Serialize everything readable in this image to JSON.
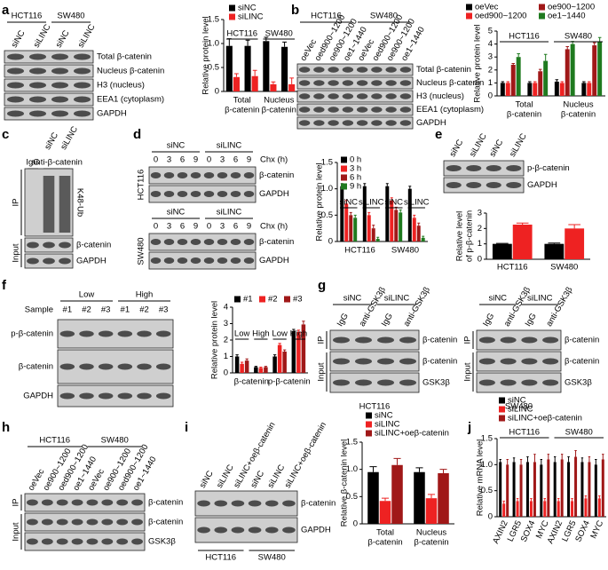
{
  "panel_labels": [
    "a",
    "b",
    "c",
    "d",
    "e",
    "f",
    "g",
    "h",
    "i",
    "j"
  ],
  "blots": [
    {
      "groups": [
        "HCT116",
        "SW480"
      ],
      "lanes": [
        "siNC",
        "siLINC",
        "siNC",
        "siLINC"
      ],
      "rows": [
        "Total β-catenin",
        "Nucleus β-catenin",
        "H3 (nucleus)",
        "EEA1 (cytoplasm)",
        "GAPDH"
      ]
    },
    {
      "groups": [
        "HCT116",
        "SW480"
      ],
      "lanes": [
        "oeVec",
        "oed900~1200",
        "oe900~1200",
        "oe1~1440",
        "oeVec",
        "oed900~1200",
        "oe900~1200",
        "oe1~1440"
      ],
      "rows": [
        "Total β-catenin",
        "Nucleus β-catenin",
        "H3 (nucleus)",
        "EEA1 (cytoplasm)",
        "GAPDH"
      ]
    },
    {
      "groups": [
        "IgG",
        "anti-β-catenin"
      ],
      "lanes": [
        null,
        "siNC",
        "siLINC"
      ],
      "side": [
        "IP",
        "Input"
      ],
      "rows": [
        "K48-Ub",
        "β-catenin",
        "GAPDH"
      ]
    },
    {
      "groups": [
        "siNC",
        "siLINC"
      ],
      "lanes": [
        0,
        3,
        6,
        9,
        0,
        3,
        6,
        9
      ],
      "chx": "Chx (h)",
      "cell": "HCT116",
      "rows": [
        "β-catenin",
        "GAPDH"
      ]
    },
    {
      "groups": [
        "siNC",
        "siLINC"
      ],
      "lanes": [
        0,
        3,
        6,
        9,
        0,
        3,
        6,
        9
      ],
      "chx": "Chx (h)",
      "cell": "SW480",
      "rows": [
        "β-catenin",
        "GAPDH"
      ]
    },
    {
      "lanes": [
        "siNC",
        "siLINC",
        "siNC",
        "siLINC"
      ],
      "rows": [
        "p-β-catenin",
        "GAPDH"
      ]
    },
    {
      "groups": [
        "Low",
        "High"
      ],
      "sample": "Sample",
      "lanes": [
        "#1",
        "#2",
        "#3",
        "#1",
        "#2",
        "#3"
      ],
      "rows": [
        "p-β-catenin",
        "β-catenin",
        "GAPDH"
      ]
    },
    {
      "groups": [
        "siNC",
        "siLINC"
      ],
      "lanes": [
        "IgG",
        "anti-GSK3β",
        "IgG",
        "anti-GSK3β"
      ],
      "side": [
        "IP",
        "Input"
      ],
      "rows": [
        "β-catenin",
        "β-catenin",
        "GSK3β"
      ],
      "captions": [
        "HCT116"
      ]
    },
    {
      "groups": [
        "siNC",
        "siLINC"
      ],
      "lanes": [
        "IgG",
        "anti-GSK3β",
        "IgG",
        "anti-GSK3β"
      ],
      "side": [
        "IP",
        "Input"
      ],
      "rows": [
        "β-catenin",
        "β-catenin",
        "GSK3β"
      ],
      "captions": [
        "SW480"
      ]
    },
    {
      "groups": [
        "HCT116",
        "SW480"
      ],
      "lanes": [
        "oeVec",
        "oe900~1200",
        "oed900~1200",
        "oe1~1440",
        "oeVec",
        "oe900~1200",
        "oed900~1200",
        "oe1~1440"
      ],
      "side": [
        "IP",
        "Input"
      ],
      "rows": [
        "β-catenin",
        "β-catenin",
        "GSK3β"
      ]
    },
    {
      "lanes": [
        "siNC",
        "siLINC",
        "siLINC+oeβ-catenin",
        "siNC",
        "siLINC",
        "siLINC+oeβ-catenin"
      ],
      "rows": [
        "β-catenin",
        "GAPDH"
      ],
      "captions": [
        "HCT116",
        "SW480"
      ]
    }
  ],
  "chart_data": [
    {
      "type": "bar",
      "ylabel": [
        "Relative protein level"
      ],
      "ylim": [
        0,
        1.5
      ],
      "yticks": [
        0,
        0.5,
        {
          "value": 1,
          "label": "1.0"
        },
        1.5
      ],
      "categories": [
        null,
        null,
        null,
        null
      ],
      "top_labels": [
        "HCT116",
        "SW480"
      ],
      "bottom_labels": [
        [
          "Total",
          "β-catenin"
        ],
        [
          "Nucleus",
          "β-catenin"
        ]
      ],
      "series": [
        {
          "name": "siNC",
          "color": "#000000",
          "values": [
            0.95,
            0.95,
            1.05,
            0.93
          ],
          "errors": [
            0.15,
            0.12,
            0.08,
            0.1
          ]
        },
        {
          "name": "siLINC",
          "color": "#ee2222",
          "values": [
            0.3,
            0.32,
            0.15,
            0.15
          ],
          "errors": [
            0.07,
            0.12,
            0.05,
            0.13
          ]
        }
      ]
    },
    {
      "type": "bar",
      "ylabel": [
        "Relative protein level"
      ],
      "ylim": [
        0,
        5
      ],
      "yticks": [
        0,
        1,
        2,
        3,
        4,
        5
      ],
      "categories": [
        null,
        null,
        null,
        null
      ],
      "top_labels": [
        "HCT116",
        "SW480"
      ],
      "bottom_labels": [
        [
          "Total",
          "β-catenin"
        ],
        [
          "Nucleus",
          "β-catenin"
        ]
      ],
      "series": [
        {
          "name": "oeVec",
          "color": "#000000",
          "values": [
            1.0,
            1.0,
            1.1,
            1.0
          ],
          "errors": [
            0.1,
            0.1,
            0.15,
            0.1
          ]
        },
        {
          "name": "oed900~1200",
          "color": "#ee2222",
          "values": [
            1.0,
            1.0,
            1.0,
            1.0
          ],
          "errors": [
            0.1,
            0.1,
            0.1,
            0.1
          ]
        },
        {
          "name": "oe900~1200",
          "color": "#a01818",
          "values": [
            2.4,
            1.9,
            3.6,
            3.9
          ],
          "errors": [
            0.1,
            0.15,
            0.2,
            0.2
          ]
        },
        {
          "name": "oe1~1440",
          "color": "#1f7a1f",
          "values": [
            3.0,
            2.7,
            4.0,
            4.2
          ],
          "errors": [
            0.25,
            0.5,
            0.2,
            0.3
          ]
        }
      ]
    },
    {
      "type": "bar",
      "ylabel": [
        "Relative protein level"
      ],
      "ylim": [
        0,
        1.5
      ],
      "yticks": [
        0,
        0.5,
        {
          "value": 1,
          "label": "1.0"
        },
        1.5
      ],
      "categories": [
        null,
        null,
        null,
        null
      ],
      "top_labels": [
        "siNC",
        "siLINC",
        "siNC",
        "siLINC"
      ],
      "bottom_labels": [
        [
          "HCT116"
        ],
        [
          "SW480"
        ]
      ],
      "series": [
        {
          "name": "0 h",
          "color": "#000000",
          "values": [
            1.05,
            1.05,
            1.05,
            1.0
          ],
          "errors": [
            0.05,
            0.05,
            0.05,
            0.05
          ]
        },
        {
          "name": "3 h",
          "color": "#ee2222",
          "values": [
            0.72,
            0.5,
            0.78,
            0.45
          ],
          "errors": [
            0.06,
            0.05,
            0.05,
            0.05
          ]
        },
        {
          "name": "6 h",
          "color": "#a01818",
          "values": [
            0.5,
            0.25,
            0.6,
            0.3
          ],
          "errors": [
            0.05,
            0.06,
            0.05,
            0.05
          ]
        },
        {
          "name": "9 h",
          "color": "#1f7a1f",
          "values": [
            0.45,
            0.05,
            0.55,
            0.07
          ],
          "errors": [
            0.05,
            0.03,
            0.05,
            0.03
          ]
        }
      ]
    },
    {
      "type": "bar",
      "ylabel": [
        "Relative level",
        "of p-β-catenin"
      ],
      "ylim": [
        0,
        3
      ],
      "yticks": [
        0,
        1,
        2,
        3
      ],
      "categories": [
        "HCT116",
        "SW480"
      ],
      "series": [
        {
          "color": "#000000",
          "values": [
            1.0,
            1.0
          ],
          "errors": [
            0.03,
            0.05
          ]
        },
        {
          "color": "#ee2222",
          "values": [
            2.25,
            2.0
          ],
          "errors": [
            0.1,
            0.25
          ]
        }
      ]
    },
    {
      "type": "bar",
      "ylabel": [
        "Relative protein level"
      ],
      "ylim": [
        0,
        4
      ],
      "yticks": [
        0,
        1,
        2,
        3,
        4
      ],
      "categories": [
        null,
        null,
        null,
        null
      ],
      "top_labels": [
        "Low",
        "High",
        "Low",
        "High"
      ],
      "bottom_labels": [
        [
          "β-catenin"
        ],
        [
          "p-β-catenin"
        ]
      ],
      "series": [
        {
          "name": "#1",
          "color": "#000000",
          "values": [
            1.0,
            0.35,
            1.0,
            2.55
          ],
          "errors": [
            0.1,
            0.05,
            0.1,
            0.1
          ]
        },
        {
          "name": "#2",
          "color": "#ee2222",
          "values": [
            0.55,
            0.3,
            1.7,
            2.5
          ],
          "errors": [
            0.1,
            0.05,
            0.1,
            0.1
          ]
        },
        {
          "name": "#3",
          "color": "#a01818",
          "values": [
            0.75,
            0.35,
            1.3,
            2.95
          ],
          "errors": [
            0.1,
            0.05,
            0.1,
            0.2
          ]
        }
      ]
    },
    {
      "type": "bar",
      "ylabel": [
        "Relative β-catenin level"
      ],
      "ylim": [
        0,
        1.5
      ],
      "yticks": [
        0,
        0.5,
        {
          "value": 1,
          "label": "1.0"
        },
        1.5
      ],
      "categories": [
        null,
        null
      ],
      "bottom_labels": [
        [
          "Total",
          "β-catenin"
        ],
        [
          "Nucleus",
          "β-catenin"
        ]
      ],
      "series": [
        {
          "name": "siNC",
          "color": "#000000",
          "values": [
            0.95,
            0.95
          ],
          "errors": [
            0.1,
            0.08
          ]
        },
        {
          "name": "siLINC",
          "color": "#ee2222",
          "values": [
            0.42,
            0.47
          ],
          "errors": [
            0.05,
            0.07
          ]
        },
        {
          "name": "siLINC+oeβ-catenin",
          "color": "#a01818",
          "values": [
            1.08,
            0.93
          ],
          "errors": [
            0.12,
            0.07
          ]
        }
      ]
    },
    {
      "type": "bar",
      "ylabel": [
        "Relative mRNA level"
      ],
      "ylim": [
        0,
        1.5
      ],
      "yticks": [
        0,
        0.5,
        {
          "value": 1,
          "label": "1.0"
        },
        1.5
      ],
      "categories": [
        "AXIN2",
        "LGR5",
        "SOX4",
        "MYC",
        "AXIN2",
        "LGR5",
        "SOX4",
        "MYC"
      ],
      "top_labels": [
        "HCT116",
        "SW480"
      ],
      "series": [
        {
          "name": "siNC",
          "color": "#000000",
          "values": [
            1.05,
            1.05,
            1.05,
            1.0,
            1.05,
            1.05,
            1.05,
            1.0
          ],
          "errors": [
            0.05,
            0.08,
            0.1,
            0.1,
            0.1,
            0.1,
            0.08,
            0.1
          ]
        },
        {
          "name": "siLINC",
          "color": "#ee2222",
          "values": [
            0.25,
            0.3,
            0.3,
            0.3,
            0.3,
            0.3,
            0.35,
            0.35
          ],
          "errors": [
            0.05,
            0.05,
            0.05,
            0.05,
            0.05,
            0.05,
            0.05,
            0.05
          ]
        },
        {
          "name": "siLINC+oeβ-catenin",
          "color": "#a01818",
          "values": [
            1.0,
            1.0,
            1.05,
            1.1,
            1.1,
            1.15,
            1.05,
            1.1
          ],
          "errors": [
            0.1,
            0.1,
            0.15,
            0.1,
            0.1,
            0.12,
            0.1,
            0.1
          ]
        }
      ]
    }
  ]
}
